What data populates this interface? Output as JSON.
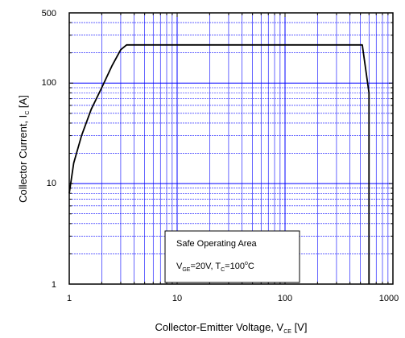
{
  "chart_data": {
    "type": "line",
    "xscale": "log",
    "yscale": "log",
    "xlim": [
      1,
      1000
    ],
    "ylim": [
      1,
      500
    ],
    "grid": true,
    "grid_color": "#0000ff",
    "line_color": "#000000",
    "xticks": [
      "1",
      "10",
      "100",
      "1000"
    ],
    "yticks": [
      "1",
      "10",
      "100",
      "500"
    ],
    "xlabel": {
      "main": "Collector-Emitter  Voltage, V",
      "sub": "CE",
      "unit": " [V]"
    },
    "ylabel": {
      "main": "Collector Current, I",
      "sub": "C",
      "unit": " [A]"
    },
    "legend_box": {
      "title": "Safe Operating Area",
      "cond_v": "V",
      "cond_v_sub": "GE",
      "cond_v_val": "=20V, T",
      "cond_t_sub": "C",
      "cond_t_val": "=100",
      "cond_deg": "o",
      "cond_unit": "C"
    },
    "series": [
      {
        "x": [
          1.0,
          1.1,
          1.3,
          1.6,
          2.0,
          2.5,
          3.0,
          3.4,
          500,
          520,
          600,
          600
        ],
        "y": [
          8,
          16,
          30,
          55,
          90,
          150,
          215,
          240,
          240,
          240,
          80,
          1
        ]
      }
    ]
  }
}
